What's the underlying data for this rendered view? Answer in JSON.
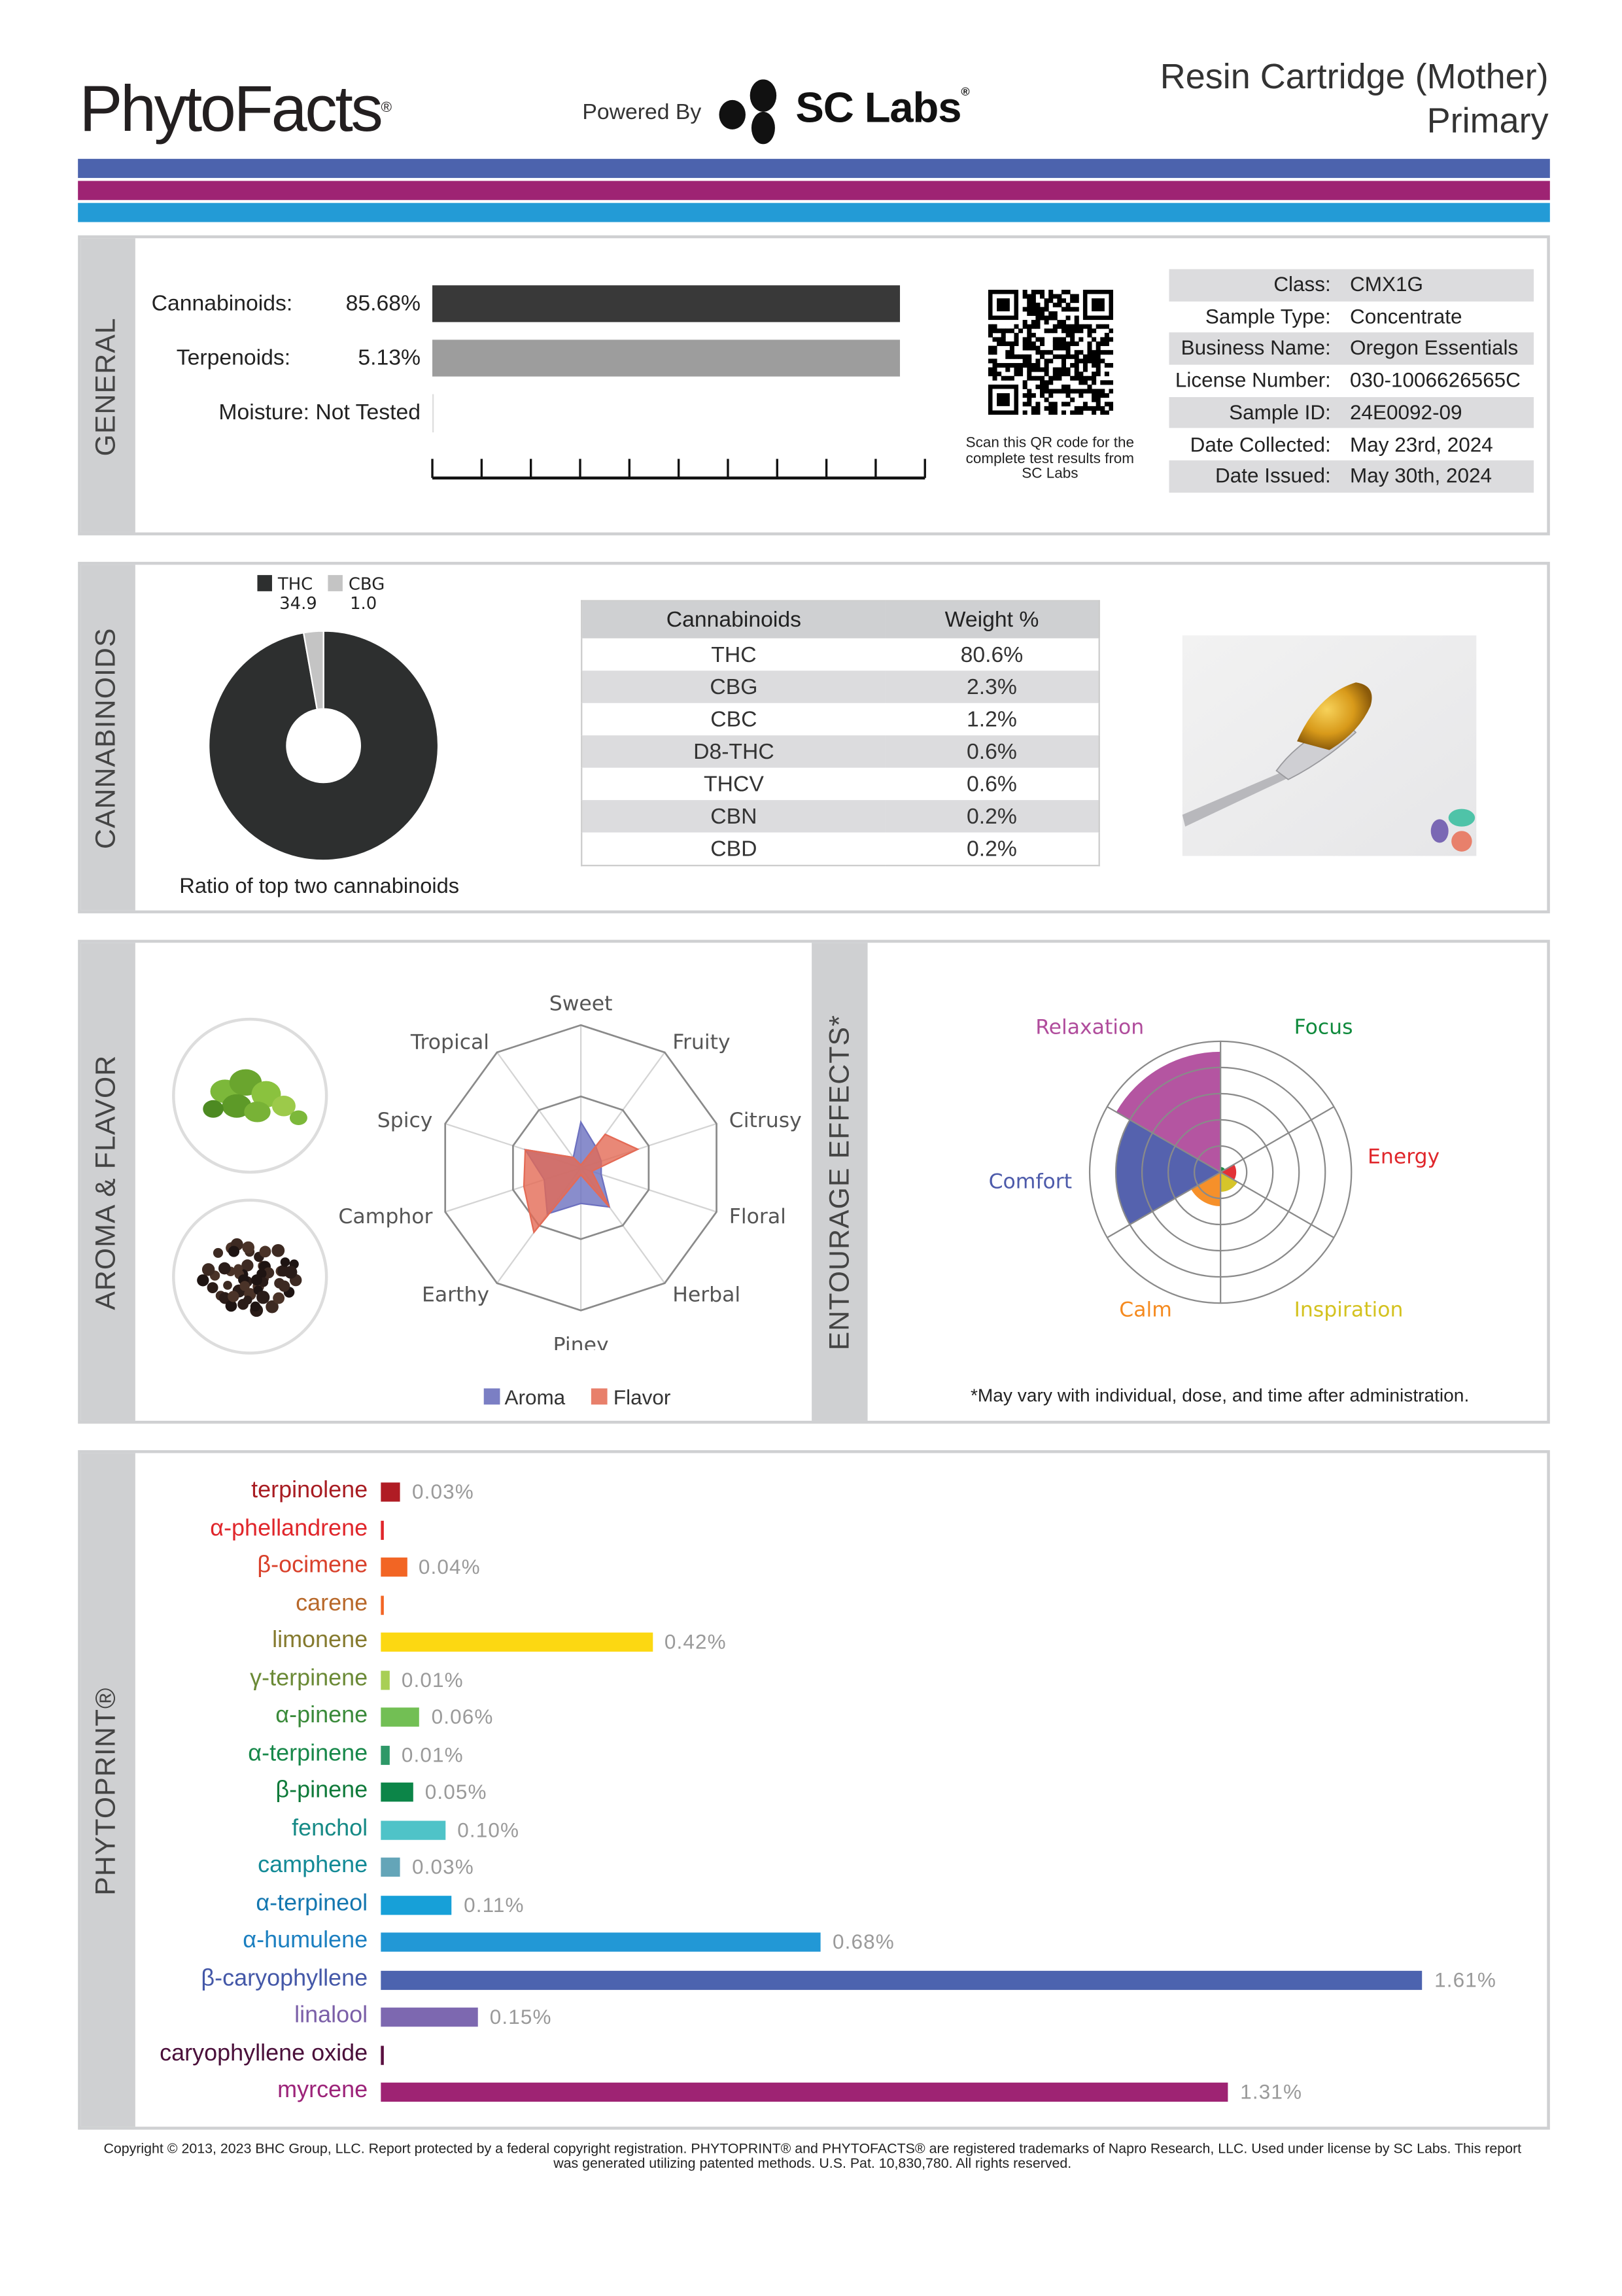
{
  "header": {
    "logo": "PhytoFacts",
    "logo_mark": "®",
    "powered_by": "Powered By",
    "partner_logo": "SC Labs",
    "partner_mark": "®",
    "title_line1": "Resin Cartridge (Mother)",
    "title_line2": "Primary",
    "band_colors": [
      "#4c63ad",
      "#9e2373",
      "#239bd6"
    ]
  },
  "general": {
    "section_label": "GENERAL",
    "cannabinoids_label": "Cannabinoids:",
    "cannabinoids_value": "85.68%",
    "terpenoids_label": "Terpenoids:",
    "terpenoids_value": "5.13%",
    "moisture_label": "Moisture:",
    "moisture_value": "Not Tested",
    "qr_note": "Scan this QR code for the complete test results from SC Labs",
    "info": [
      {
        "label": "Class:",
        "value": "CMX1G"
      },
      {
        "label": "Sample Type:",
        "value": "Concentrate"
      },
      {
        "label": "Business Name:",
        "value": "Oregon Essentials"
      },
      {
        "label": "License Number:",
        "value": "030-1006626565C"
      },
      {
        "label": "Sample ID:",
        "value": "24E0092-09"
      },
      {
        "label": "Date Collected:",
        "value": "May 23rd, 2024"
      },
      {
        "label": "Date Issued:",
        "value": "May 30th, 2024"
      }
    ]
  },
  "cannabinoids": {
    "section_label": "CANNABINOIDS",
    "ratio_caption": "Ratio of top two cannabinoids",
    "table_headers": [
      "Cannabinoids",
      "Weight %"
    ],
    "rows": [
      [
        "THC",
        "80.6%"
      ],
      [
        "CBG",
        "2.3%"
      ],
      [
        "CBC",
        "1.2%"
      ],
      [
        "D8-THC",
        "0.6%"
      ],
      [
        "THCV",
        "0.6%"
      ],
      [
        "CBN",
        "0.2%"
      ],
      [
        "CBD",
        "0.2%"
      ]
    ]
  },
  "aroma": {
    "section_label": "AROMA & FLAVOR",
    "legend": [
      {
        "label": "Aroma",
        "color": "#7b7fc4"
      },
      {
        "label": "Flavor",
        "color": "#e8806b"
      }
    ]
  },
  "entourage": {
    "section_label": "ENTOURAGE EFFECTS*",
    "note": "*May vary with individual, dose, and time after administration."
  },
  "phytoprint": {
    "section_label": "PHYTOPRINT®",
    "terpenes": [
      {
        "name": "terpinolene",
        "value": 0.03,
        "display": "0.03%",
        "label_color": "#a81c22",
        "bar_color": "#b01c24"
      },
      {
        "name": "α-phellandrene",
        "value": 0,
        "display": "",
        "label_color": "#e0262b",
        "bar_color": "#e0262b"
      },
      {
        "name": "β-ocimene",
        "value": 0.04,
        "display": "0.04%",
        "label_color": "#d9402a",
        "bar_color": "#f26524"
      },
      {
        "name": "carene",
        "value": 0,
        "display": "",
        "label_color": "#b8682a",
        "bar_color": "#f26524"
      },
      {
        "name": "limonene",
        "value": 0.42,
        "display": "0.42%",
        "label_color": "#857a2e",
        "bar_color": "#fcd812"
      },
      {
        "name": "γ-terpinene",
        "value": 0.01,
        "display": "0.01%",
        "label_color": "#6b8a36",
        "bar_color": "#a8cf55"
      },
      {
        "name": "α-pinene",
        "value": 0.06,
        "display": "0.06%",
        "label_color": "#3a8a3a",
        "bar_color": "#72bf54"
      },
      {
        "name": "α-terpinene",
        "value": 0.01,
        "display": "0.01%",
        "label_color": "#17884a",
        "bar_color": "#2e9868"
      },
      {
        "name": "β-pinene",
        "value": 0.05,
        "display": "0.05%",
        "label_color": "#0f7a3a",
        "bar_color": "#0c8548"
      },
      {
        "name": "fenchol",
        "value": 0.1,
        "display": "0.10%",
        "label_color": "#168a86",
        "bar_color": "#4fc3c8"
      },
      {
        "name": "camphene",
        "value": 0.03,
        "display": "0.03%",
        "label_color": "#138a96",
        "bar_color": "#64a5b8"
      },
      {
        "name": "α-terpineol",
        "value": 0.11,
        "display": "0.11%",
        "label_color": "#1477b0",
        "bar_color": "#17a0d8"
      },
      {
        "name": "α-humulene",
        "value": 0.68,
        "display": "0.68%",
        "label_color": "#1b7fc0",
        "bar_color": "#2298d6"
      },
      {
        "name": "β-caryophyllene",
        "value": 1.61,
        "display": "1.61%",
        "label_color": "#4458a8",
        "bar_color": "#4c63af"
      },
      {
        "name": "linalool",
        "value": 0.15,
        "display": "0.15%",
        "label_color": "#7b5fa8",
        "bar_color": "#7d68b0"
      },
      {
        "name": "caryophyllene oxide",
        "value": 0,
        "display": "",
        "label_color": "#4a0f3a",
        "bar_color": "#5a1040"
      },
      {
        "name": "myrcene",
        "value": 1.31,
        "display": "1.31%",
        "label_color": "#9c2379",
        "bar_color": "#9e2373"
      }
    ]
  },
  "footer": {
    "line1": "Copyright © 2013, 2023 BHC Group, LLC. Report protected by a federal copyright registration. PHYTOPRINT® and PHYTOFACTS® are registered trademarks of Napro Research, LLC. Used under license by SC Labs. This report",
    "line2": "was generated utilizing patented methods. U.S. Pat. 10,830,780. All rights reserved."
  },
  "chart_data": [
    {
      "type": "pie",
      "title": "Ratio of top two cannabinoids",
      "categories": [
        "THC",
        "CBG"
      ],
      "values": [
        34.9,
        1.0
      ],
      "value_labels": [
        "34.9",
        "1.0"
      ],
      "colors": [
        "#2d2f2f",
        "#c4c4c4"
      ],
      "legend": "top"
    },
    {
      "type": "radar",
      "title": "Aroma & Flavor",
      "axes": [
        "Sweet",
        "Fruity",
        "Citrusy",
        "Floral",
        "Herbal",
        "Piney",
        "Earthy",
        "Camphor",
        "Spicy",
        "Tropical"
      ],
      "rlim": [
        0,
        1
      ],
      "series": [
        {
          "name": "Aroma",
          "color": "#6c70bf",
          "values": [
            0.32,
            0.18,
            0.15,
            0.15,
            0.34,
            0.25,
            0.4,
            0.27,
            0.41,
            0.09
          ]
        },
        {
          "name": "Flavor",
          "color": "#e46a55",
          "values": [
            0.02,
            0.29,
            0.42,
            0.08,
            0.34,
            0.05,
            0.56,
            0.42,
            0.41,
            0.09
          ]
        }
      ],
      "legend": "bottom"
    },
    {
      "type": "polar-area",
      "title": "Entourage Effects",
      "rlim": [
        0,
        5
      ],
      "categories": [
        "Focus",
        "Energy",
        "Inspiration",
        "Calm",
        "Comfort",
        "Relaxation"
      ],
      "values": [
        0.2,
        0.6,
        0.75,
        1.3,
        4.0,
        4.6
      ],
      "colors": [
        "#0f8a3c",
        "#e0262b",
        "#d4c21f",
        "#f58a1f",
        "#4c5aaa",
        "#b04c9c"
      ]
    },
    {
      "type": "bar",
      "title": "PhytoPrint terpenes (%)",
      "categories": [
        "terpinolene",
        "α-phellandrene",
        "β-ocimene",
        "carene",
        "limonene",
        "γ-terpinene",
        "α-pinene",
        "α-terpinene",
        "β-pinene",
        "fenchol",
        "camphene",
        "α-terpineol",
        "α-humulene",
        "β-caryophyllene",
        "linalool",
        "caryophyllene oxide",
        "myrcene"
      ],
      "values": [
        0.03,
        0,
        0.04,
        0,
        0.42,
        0.01,
        0.06,
        0.01,
        0.05,
        0.1,
        0.03,
        0.11,
        0.68,
        1.61,
        0.15,
        0,
        1.31
      ],
      "orientation": "horizontal"
    }
  ]
}
